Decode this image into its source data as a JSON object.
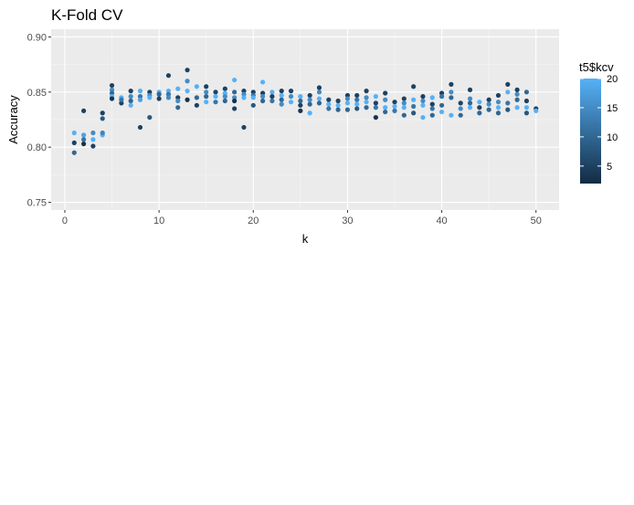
{
  "chart_data": {
    "type": "scatter",
    "title": "K-Fold CV",
    "xlabel": "k",
    "ylabel": "Accuracy",
    "xlim": [
      -1.45,
      52.45
    ],
    "ylim": [
      0.743,
      0.907
    ],
    "x_ticks": [
      0,
      10,
      20,
      30,
      40,
      50
    ],
    "x_tick_labels": [
      "0",
      "10",
      "20",
      "30",
      "40",
      "50"
    ],
    "y_ticks": [
      0.75,
      0.8,
      0.85,
      0.9
    ],
    "y_tick_labels": [
      "0.75",
      "0.80",
      "0.85",
      "0.90"
    ],
    "grid": true,
    "legend": {
      "title": "t5$kcv",
      "placement": "right",
      "type": "colorbar",
      "range": [
        2,
        20
      ],
      "breaks": [
        5,
        10,
        15,
        20
      ],
      "break_labels": [
        "5",
        "10",
        "15",
        "20"
      ],
      "low_color": "#132B43",
      "high_color": "#56B1F7"
    },
    "points": [
      [
        1,
        0.813,
        20
      ],
      [
        1,
        0.804,
        5
      ],
      [
        1,
        0.795,
        10
      ],
      [
        2,
        0.833,
        5
      ],
      [
        2,
        0.811,
        18
      ],
      [
        2,
        0.807,
        12
      ],
      [
        2,
        0.803,
        3
      ],
      [
        3,
        0.813,
        15
      ],
      [
        3,
        0.807,
        20
      ],
      [
        3,
        0.801,
        5
      ],
      [
        4,
        0.831,
        5
      ],
      [
        4,
        0.826,
        8
      ],
      [
        4,
        0.811,
        20
      ],
      [
        4,
        0.813,
        14
      ],
      [
        5,
        0.856,
        5
      ],
      [
        5,
        0.852,
        15
      ],
      [
        5,
        0.849,
        10
      ],
      [
        5,
        0.846,
        20
      ],
      [
        5,
        0.844,
        3
      ],
      [
        6,
        0.845,
        20
      ],
      [
        6,
        0.84,
        5
      ],
      [
        6,
        0.843,
        12
      ],
      [
        7,
        0.851,
        5
      ],
      [
        7,
        0.846,
        15
      ],
      [
        7,
        0.842,
        10
      ],
      [
        7,
        0.838,
        20
      ],
      [
        8,
        0.851,
        20
      ],
      [
        8,
        0.846,
        12
      ],
      [
        8,
        0.843,
        18
      ],
      [
        8,
        0.818,
        5
      ],
      [
        9,
        0.85,
        5
      ],
      [
        9,
        0.847,
        15
      ],
      [
        9,
        0.845,
        20
      ],
      [
        9,
        0.827,
        8
      ],
      [
        10,
        0.85,
        20
      ],
      [
        10,
        0.848,
        10
      ],
      [
        10,
        0.844,
        5
      ],
      [
        11,
        0.865,
        5
      ],
      [
        11,
        0.851,
        20
      ],
      [
        11,
        0.848,
        12
      ],
      [
        11,
        0.845,
        15
      ],
      [
        12,
        0.853,
        20
      ],
      [
        12,
        0.845,
        5
      ],
      [
        12,
        0.842,
        15
      ],
      [
        12,
        0.836,
        10
      ],
      [
        13,
        0.87,
        5
      ],
      [
        13,
        0.86,
        15
      ],
      [
        13,
        0.851,
        20
      ],
      [
        13,
        0.843,
        3
      ],
      [
        14,
        0.855,
        20
      ],
      [
        14,
        0.845,
        10
      ],
      [
        14,
        0.838,
        5
      ],
      [
        15,
        0.855,
        5
      ],
      [
        15,
        0.85,
        15
      ],
      [
        15,
        0.846,
        10
      ],
      [
        15,
        0.841,
        20
      ],
      [
        16,
        0.85,
        5
      ],
      [
        16,
        0.846,
        20
      ],
      [
        16,
        0.841,
        12
      ],
      [
        17,
        0.853,
        5
      ],
      [
        17,
        0.849,
        20
      ],
      [
        17,
        0.846,
        15
      ],
      [
        17,
        0.842,
        10
      ],
      [
        18,
        0.861,
        20
      ],
      [
        18,
        0.85,
        10
      ],
      [
        18,
        0.845,
        15
      ],
      [
        18,
        0.842,
        3
      ],
      [
        18,
        0.835,
        5
      ],
      [
        19,
        0.851,
        5
      ],
      [
        19,
        0.848,
        15
      ],
      [
        19,
        0.845,
        20
      ],
      [
        19,
        0.818,
        5
      ],
      [
        20,
        0.85,
        5
      ],
      [
        20,
        0.847,
        12
      ],
      [
        20,
        0.845,
        20
      ],
      [
        20,
        0.838,
        8
      ],
      [
        21,
        0.859,
        20
      ],
      [
        21,
        0.849,
        5
      ],
      [
        21,
        0.846,
        15
      ],
      [
        21,
        0.842,
        10
      ],
      [
        22,
        0.85,
        20
      ],
      [
        22,
        0.846,
        5
      ],
      [
        22,
        0.842,
        12
      ],
      [
        23,
        0.851,
        5
      ],
      [
        23,
        0.847,
        20
      ],
      [
        23,
        0.843,
        10
      ],
      [
        23,
        0.839,
        15
      ],
      [
        24,
        0.851,
        5
      ],
      [
        24,
        0.846,
        15
      ],
      [
        24,
        0.841,
        20
      ],
      [
        25,
        0.846,
        20
      ],
      [
        25,
        0.842,
        10
      ],
      [
        25,
        0.838,
        5
      ],
      [
        25,
        0.833,
        3
      ],
      [
        26,
        0.847,
        5
      ],
      [
        26,
        0.843,
        15
      ],
      [
        26,
        0.839,
        10
      ],
      [
        26,
        0.831,
        20
      ],
      [
        27,
        0.854,
        5
      ],
      [
        27,
        0.85,
        15
      ],
      [
        27,
        0.844,
        20
      ],
      [
        27,
        0.84,
        10
      ],
      [
        28,
        0.843,
        5
      ],
      [
        28,
        0.839,
        20
      ],
      [
        28,
        0.835,
        12
      ],
      [
        29,
        0.842,
        5
      ],
      [
        29,
        0.838,
        20
      ],
      [
        29,
        0.834,
        10
      ],
      [
        30,
        0.847,
        5
      ],
      [
        30,
        0.844,
        15
      ],
      [
        30,
        0.84,
        20
      ],
      [
        30,
        0.834,
        10
      ],
      [
        31,
        0.847,
        5
      ],
      [
        31,
        0.843,
        12
      ],
      [
        31,
        0.839,
        20
      ],
      [
        31,
        0.835,
        8
      ],
      [
        32,
        0.851,
        5
      ],
      [
        32,
        0.845,
        15
      ],
      [
        32,
        0.841,
        20
      ],
      [
        32,
        0.836,
        10
      ],
      [
        33,
        0.846,
        20
      ],
      [
        33,
        0.84,
        5
      ],
      [
        33,
        0.836,
        12
      ],
      [
        33,
        0.827,
        3
      ],
      [
        34,
        0.849,
        5
      ],
      [
        34,
        0.843,
        15
      ],
      [
        34,
        0.836,
        20
      ],
      [
        34,
        0.832,
        10
      ],
      [
        35,
        0.841,
        5
      ],
      [
        35,
        0.837,
        20
      ],
      [
        35,
        0.833,
        12
      ],
      [
        36,
        0.844,
        5
      ],
      [
        36,
        0.84,
        15
      ],
      [
        36,
        0.836,
        20
      ],
      [
        36,
        0.829,
        10
      ],
      [
        37,
        0.855,
        5
      ],
      [
        37,
        0.843,
        20
      ],
      [
        37,
        0.837,
        12
      ],
      [
        37,
        0.831,
        8
      ],
      [
        38,
        0.846,
        5
      ],
      [
        38,
        0.842,
        15
      ],
      [
        38,
        0.838,
        20
      ],
      [
        38,
        0.827,
        20
      ],
      [
        39,
        0.845,
        20
      ],
      [
        39,
        0.839,
        5
      ],
      [
        39,
        0.835,
        12
      ],
      [
        39,
        0.829,
        10
      ],
      [
        40,
        0.849,
        5
      ],
      [
        40,
        0.846,
        12
      ],
      [
        40,
        0.838,
        10
      ],
      [
        40,
        0.832,
        20
      ],
      [
        41,
        0.857,
        5
      ],
      [
        41,
        0.85,
        15
      ],
      [
        41,
        0.845,
        10
      ],
      [
        41,
        0.829,
        20
      ],
      [
        42,
        0.84,
        5
      ],
      [
        42,
        0.835,
        15
      ],
      [
        42,
        0.829,
        10
      ],
      [
        43,
        0.852,
        5
      ],
      [
        43,
        0.844,
        15
      ],
      [
        43,
        0.84,
        10
      ],
      [
        43,
        0.836,
        20
      ],
      [
        44,
        0.841,
        20
      ],
      [
        44,
        0.836,
        5
      ],
      [
        44,
        0.831,
        10
      ],
      [
        45,
        0.843,
        5
      ],
      [
        45,
        0.839,
        15
      ],
      [
        45,
        0.834,
        10
      ],
      [
        46,
        0.847,
        5
      ],
      [
        46,
        0.841,
        15
      ],
      [
        46,
        0.836,
        20
      ],
      [
        46,
        0.831,
        10
      ],
      [
        47,
        0.857,
        5
      ],
      [
        47,
        0.85,
        20
      ],
      [
        47,
        0.84,
        12
      ],
      [
        47,
        0.834,
        8
      ],
      [
        48,
        0.852,
        5
      ],
      [
        48,
        0.848,
        15
      ],
      [
        48,
        0.843,
        10
      ],
      [
        48,
        0.836,
        20
      ],
      [
        49,
        0.85,
        10
      ],
      [
        49,
        0.842,
        5
      ],
      [
        49,
        0.836,
        20
      ],
      [
        49,
        0.831,
        8
      ],
      [
        50,
        0.835,
        5
      ],
      [
        50,
        0.833,
        20
      ]
    ]
  }
}
